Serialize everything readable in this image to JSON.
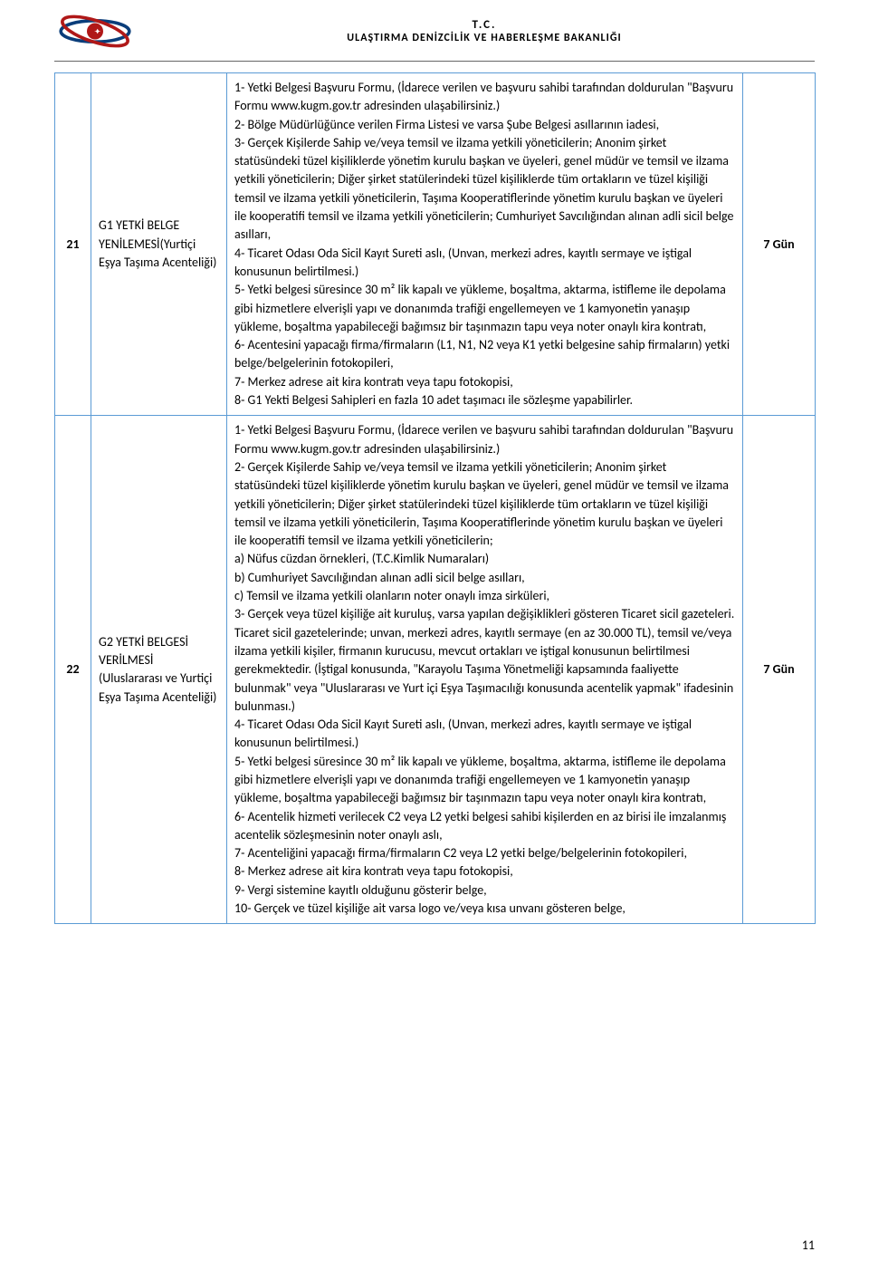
{
  "header": {
    "line1": "T.C.",
    "line2": "ULAŞTIRMA DENİZCİLİK VE HABERLEŞME BAKANLIĞI"
  },
  "accent_color": "#c00000",
  "border_color": "#5b9bd5",
  "rows": [
    {
      "num": "21",
      "title": "G1 YETKİ BELGE YENİLEMESİ(Yurtiçi Eşya Taşıma Acenteliği)",
      "desc": "1- Yetki Belgesi Başvuru Formu, (İdarece verilen ve başvuru sahibi tarafından doldurulan \"Başvuru Formu www.kugm.gov.tr  adresinden ulaşabilirsiniz.)\n2- Bölge Müdürlüğünce verilen Firma Listesi ve varsa Şube Belgesi asıllarının iadesi,\n3- Gerçek Kişilerde Sahip ve/veya temsil ve ilzama yetkili yöneticilerin; Anonim şirket statüsündeki tüzel kişiliklerde yönetim kurulu başkan ve üyeleri, genel müdür ve temsil ve ilzama yetkili yöneticilerin; Diğer şirket statülerindeki tüzel kişiliklerde tüm ortakların ve tüzel kişiliği temsil ve ilzama yetkili yöneticilerin, Taşıma Kooperatiflerinde yönetim kurulu başkan ve üyeleri ile kooperatifi temsil ve ilzama yetkili yöneticilerin; Cumhuriyet Savcılığından alınan adli sicil belge asılları,\n4- Ticaret Odası Oda Sicil Kayıt Sureti aslı, (Unvan, merkezi adres, kayıtlı sermaye ve iştigal konusunun belirtilmesi.)\n5- Yetki belgesi süresince 30 m² lik kapalı ve yükleme, boşaltma, aktarma, istifleme ile depolama gibi hizmetlere elverişli yapı ve donanımda trafiği engellemeyen ve 1 kamyonetin yanaşıp yükleme, boşaltma yapabileceği bağımsız bir taşınmazın tapu veya noter onaylı kira kontratı,\n6- Acentesini yapacağı firma/firmaların (L1, N1, N2 veya K1 yetki belgesine sahip firmaların) yetki belge/belgelerinin fotokopileri,\n7- Merkez adrese ait kira kontratı veya tapu fotokopisi,\n 8- G1 Yekti Belgesi Sahipleri en fazla 10 adet taşımacı ile sözleşme yapabilirler.",
      "duration": "7 Gün"
    },
    {
      "num": "22",
      "title": "G2 YETKİ BELGESİ VERİLMESİ (Uluslararası ve Yurtiçi Eşya Taşıma Acenteliği)",
      "desc": "1- Yetki Belgesi Başvuru Formu, (İdarece verilen ve başvuru sahibi tarafından doldurulan \"Başvuru Formu  www.kugm.gov.tr  adresinden ulaşabilirsiniz.)\n2- Gerçek Kişilerde Sahip ve/veya temsil ve ilzama yetkili yöneticilerin; Anonim şirket statüsündeki tüzel kişiliklerde yönetim kurulu başkan ve üyeleri, genel müdür ve temsil ve ilzama yetkili yöneticilerin; Diğer şirket statülerindeki tüzel kişiliklerde tüm ortakların ve tüzel kişiliği temsil ve ilzama yetkili yöneticilerin, Taşıma Kooperatiflerinde yönetim kurulu başkan ve üyeleri ile kooperatifi temsil ve ilzama yetkili yöneticilerin;\na)  Nüfus cüzdan örnekleri, (T.C.Kimlik Numaraları)\nb)  Cumhuriyet Savcılığından alınan adli sicil belge asılları,\nc)  Temsil ve ilzama yetkili olanların noter onaylı imza sirküleri,\n3- Gerçek veya tüzel kişiliğe ait kuruluş, varsa yapılan değişiklikleri gösteren Ticaret sicil gazeteleri. Ticaret sicil gazetelerinde; unvan, merkezi adres, kayıtlı sermaye (en az 30.000 TL), temsil ve/veya ilzama yetkili kişiler, firmanın kurucusu, mevcut ortakları ve iştigal konusunun belirtilmesi gerekmektedir. (İştigal konusunda, \"Karayolu Taşıma Yönetmeliği kapsamında faaliyette bulunmak\" veya \"Uluslararası ve Yurt içi Eşya Taşımacılığı konusunda acentelik yapmak\" ifadesinin bulunması.)\n4- Ticaret Odası Oda Sicil Kayıt Sureti aslı, (Unvan, merkezi adres, kayıtlı sermaye ve iştigal konusunun belirtilmesi.)\n5- Yetki belgesi süresince 30 m² lik kapalı ve yükleme, boşaltma, aktarma, istifleme ile depolama gibi hizmetlere elverişli yapı ve donanımda trafiği engellemeyen ve 1 kamyonetin yanaşıp yükleme, boşaltma yapabileceği bağımsız bir taşınmazın tapu veya noter onaylı kira kontratı,\n6- Acentelik hizmeti verilecek C2 veya L2 yetki belgesi sahibi kişilerden en az birisi ile imzalanmış acentelik sözleşmesinin noter onaylı aslı,\n7- Acenteliğini yapacağı firma/firmaların C2 veya L2 yetki belge/belgelerinin fotokopileri,\n8- Merkez adrese ait kira kontratı veya tapu fotokopisi,\n9- Vergi sistemine kayıtlı olduğunu gösterir belge,\n10- Gerçek ve tüzel kişiliğe ait varsa logo ve/veya kısa unvanı gösteren belge,",
      "duration": "7 Gün"
    }
  ],
  "page_number": "11"
}
